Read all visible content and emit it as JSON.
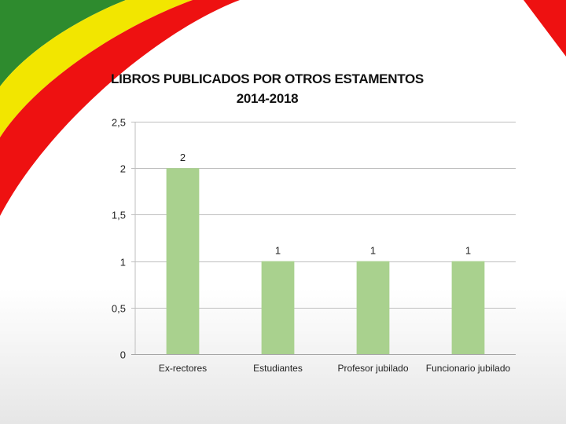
{
  "slide": {
    "colors": {
      "green": "#2e8b2e",
      "yellow": "#f2e600",
      "red": "#ee1111"
    }
  },
  "chart_data": {
    "type": "bar",
    "title": "LIBROS PUBLICADOS POR OTROS ESTAMENTOS",
    "subtitle": "2014-2018",
    "categories": [
      "Ex-rectores",
      "Estudiantes",
      "Profesor jubilado",
      "Funcionario jubilado"
    ],
    "values": [
      2,
      1,
      1,
      1
    ],
    "data_labels": [
      "2",
      "1",
      "1",
      "1"
    ],
    "y_ticks": [
      "0",
      "0,5",
      "1",
      "1,5",
      "2",
      "2,5"
    ],
    "y_tick_values": [
      0,
      0.5,
      1,
      1.5,
      2,
      2.5
    ],
    "ylim": [
      0,
      2.5
    ],
    "xlabel": "",
    "ylabel": "",
    "grid": true,
    "legend": "none",
    "bar_color": "#a9d18e"
  }
}
